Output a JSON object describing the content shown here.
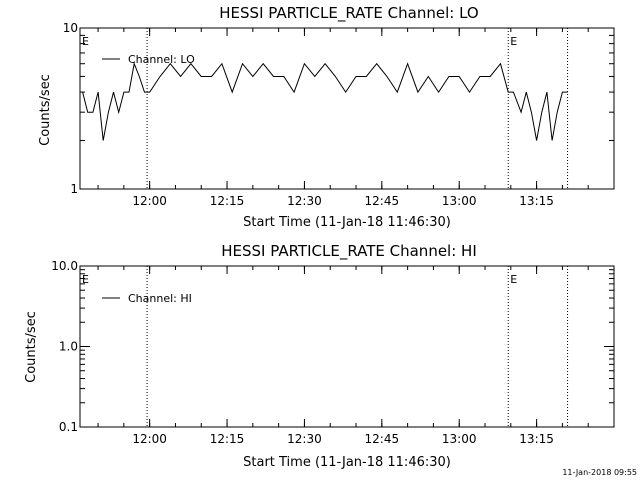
{
  "chart_data": [
    {
      "type": "line",
      "title": "HESSI PARTICLE_RATE Channel: LO",
      "xlabel": "Start Time (11-Jan-18 11:46:30)",
      "ylabel": "Counts/sec",
      "y_scale": "log",
      "ylim": [
        1,
        10
      ],
      "xlim": [
        "11:46:30",
        "13:30:00"
      ],
      "x_ticks": [
        "12:00",
        "12:15",
        "12:30",
        "12:45",
        "13:00",
        "13:15"
      ],
      "y_ticks": [
        "1",
        "10"
      ],
      "legend": {
        "position": "top-left",
        "entries": [
          "Channel: LO"
        ]
      },
      "markers": [
        {
          "label": "E",
          "time": "11:46:30"
        },
        {
          "label": "",
          "time": "11:59:30"
        },
        {
          "label": "E",
          "time": "13:09:30"
        },
        {
          "label": "",
          "time": "13:21:00"
        }
      ],
      "series": [
        {
          "name": "Channel: LO",
          "x": [
            "11:47:00",
            "11:48:00",
            "11:49:00",
            "11:50:00",
            "11:51:00",
            "11:52:00",
            "11:53:00",
            "11:54:00",
            "11:55:00",
            "11:56:00",
            "11:57:00",
            "11:58:00",
            "11:59:00",
            "12:00:00",
            "12:02:00",
            "12:04:00",
            "12:06:00",
            "12:08:00",
            "12:10:00",
            "12:12:00",
            "12:14:00",
            "12:16:00",
            "12:18:00",
            "12:20:00",
            "12:22:00",
            "12:24:00",
            "12:26:00",
            "12:28:00",
            "12:30:00",
            "12:32:00",
            "12:34:00",
            "12:36:00",
            "12:38:00",
            "12:40:00",
            "12:42:00",
            "12:44:00",
            "12:46:00",
            "12:48:00",
            "12:50:00",
            "12:52:00",
            "12:54:00",
            "12:56:00",
            "12:58:00",
            "13:00:00",
            "13:02:00",
            "13:04:00",
            "13:06:00",
            "13:08:00",
            "13:09:30",
            "13:10:30",
            "13:12:00",
            "13:13:00",
            "13:14:00",
            "13:15:00",
            "13:16:00",
            "13:17:00",
            "13:18:00",
            "13:19:00",
            "13:20:00",
            "13:21:00"
          ],
          "values": [
            4,
            3,
            3,
            4,
            2,
            3,
            4,
            3,
            4,
            4,
            6,
            5,
            4,
            4,
            5,
            6,
            5,
            6,
            5,
            5,
            6,
            4,
            6,
            5,
            6,
            5,
            5,
            4,
            6,
            5,
            6,
            5,
            4,
            5,
            5,
            6,
            5,
            4,
            6,
            4,
            5,
            4,
            5,
            5,
            4,
            5,
            5,
            6,
            4,
            4,
            3,
            4,
            3,
            2,
            3,
            4,
            2,
            3,
            4,
            4
          ]
        }
      ]
    },
    {
      "type": "line",
      "title": "HESSI PARTICLE_RATE Channel: HI",
      "xlabel": "Start Time (11-Jan-18 11:46:30)",
      "ylabel": "Counts/sec",
      "y_scale": "log",
      "ylim": [
        0.1,
        10
      ],
      "xlim": [
        "11:46:30",
        "13:30:00"
      ],
      "x_ticks": [
        "12:00",
        "12:15",
        "12:30",
        "12:45",
        "13:00",
        "13:15"
      ],
      "y_ticks": [
        "0.1",
        "1.0",
        "10.0"
      ],
      "legend": {
        "position": "top-left",
        "entries": [
          "Channel: HI"
        ]
      },
      "markers": [
        {
          "label": "E",
          "time": "11:46:30"
        },
        {
          "label": "",
          "time": "11:59:30"
        },
        {
          "label": "E",
          "time": "13:09:30"
        },
        {
          "label": "",
          "time": "13:21:00"
        }
      ],
      "series": [
        {
          "name": "Channel: HI",
          "x": [],
          "values": []
        }
      ]
    }
  ],
  "footer": {
    "timestamp": "11-Jan-2018 09:55"
  }
}
